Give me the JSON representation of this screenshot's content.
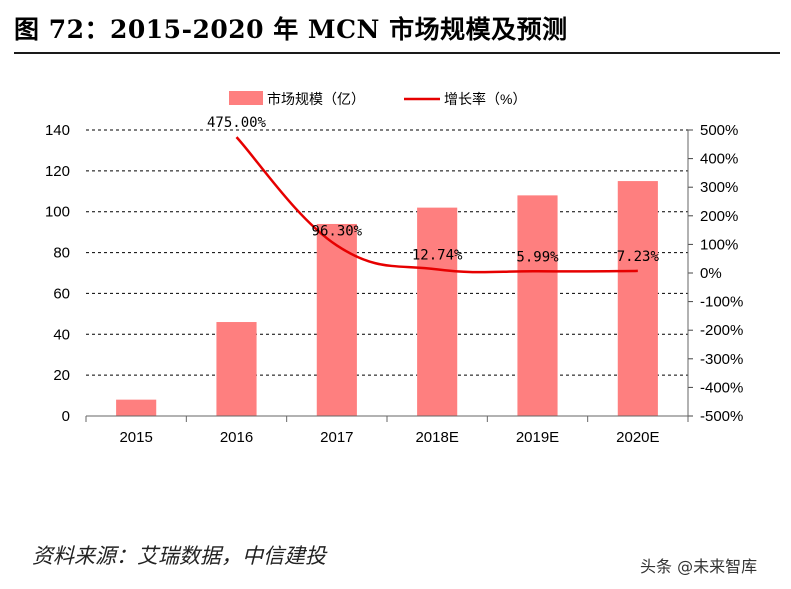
{
  "figure": {
    "title": "图 72：2015-2020 年 MCN 市场规模及预测",
    "source": "资料来源：艾瑞数据，中信建投",
    "watermark": "头条 @未来智库"
  },
  "chart_data": {
    "type": "bar+line",
    "categories": [
      "2015",
      "2016",
      "2017",
      "2018E",
      "2019E",
      "2020E"
    ],
    "series": [
      {
        "name": "市场规模（亿）",
        "type": "bar",
        "axis": "left",
        "values": [
          8,
          46,
          94,
          102,
          108,
          115
        ],
        "color": "#fe7f7f"
      },
      {
        "name": "增长率（%）",
        "type": "line",
        "axis": "right",
        "values": [
          null,
          475.0,
          96.3,
          12.74,
          5.99,
          7.23
        ],
        "color": "#e60000",
        "data_labels": [
          "",
          "475.00%",
          "96.30%",
          "12.74%",
          "5.99%",
          "7.23%"
        ]
      }
    ],
    "y_left": {
      "ylim": [
        0,
        140
      ],
      "ticks": [
        "0",
        "20",
        "40",
        "60",
        "80",
        "100",
        "120",
        "140"
      ]
    },
    "y_right": {
      "ylim": [
        -500,
        500
      ],
      "ticks": [
        "-500%",
        "-400%",
        "-300%",
        "-200%",
        "-100%",
        "0%",
        "100%",
        "200%",
        "300%",
        "400%",
        "500%"
      ]
    },
    "legend": [
      "市场规模（亿）",
      "增长率（%）"
    ],
    "legend_position": "top-center",
    "grid": "horizontal dashed"
  }
}
